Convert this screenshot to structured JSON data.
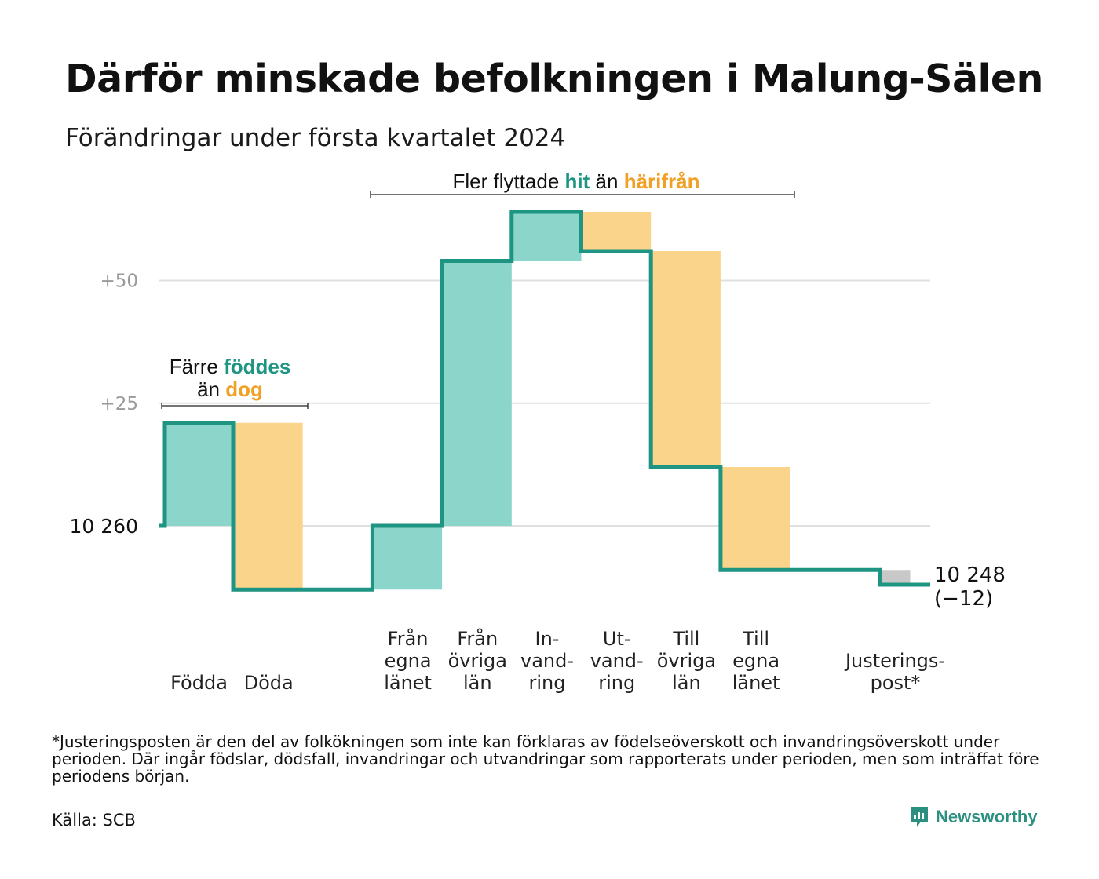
{
  "title": "Därför minskade befolkningen i Malung-Sälen",
  "subtitle": "Förändringar under första kvartalet 2024",
  "footnote": "*Justeringsposten är den del av folkökningen som inte kan förklaras av födelseöverskott och invandringsöverskott under perioden. Där ingår födslar, dödsfall, invandringar och utvandringar som rapporterats under perioden, men som inträffat före periodens början.",
  "source": "Källa: SCB",
  "brand": "Newsworthy",
  "colors": {
    "increase": "#8cd5cb",
    "decrease": "#fad48b",
    "adjustment": "#c8c8c8",
    "line": "#1e9482",
    "grid": "#e0e0e0",
    "annot_teal": "#1e9482",
    "annot_orange": "#f0a024"
  },
  "annotations": {
    "births": {
      "line1_pre": "Färre",
      "line1_hl": "föddes",
      "line2_pre": "än",
      "line2_hl": "dog"
    },
    "migration": {
      "pre": "Fler flyttade",
      "hl1": "hit",
      "mid": "än",
      "hl2": "härifrån"
    }
  },
  "chart_data": {
    "type": "waterfall",
    "title": "Därför minskade befolkningen i Malung-Sälen",
    "subtitle": "Förändringar under första kvartalet 2024",
    "start": {
      "value": 10260,
      "label": "10  260"
    },
    "end": {
      "value": 10248,
      "label_line1": "10 248",
      "label_line2": "(−12)"
    },
    "y_ticks": [
      {
        "value": 25,
        "label": "+25"
      },
      {
        "value": 50,
        "label": "+50"
      }
    ],
    "ylim": [
      -22,
      66
    ],
    "grid": true,
    "categories": [
      {
        "label_lines": [
          "Födda"
        ],
        "change": 21,
        "kind": "increase"
      },
      {
        "label_lines": [
          "Döda"
        ],
        "change": -34,
        "kind": "decrease"
      },
      {
        "label_lines": [],
        "change": 0,
        "kind": "gap"
      },
      {
        "label_lines": [
          "Från",
          "egna",
          "länet"
        ],
        "change": 13,
        "kind": "increase"
      },
      {
        "label_lines": [
          "Från",
          "övriga",
          "län"
        ],
        "change": 54,
        "kind": "increase"
      },
      {
        "label_lines": [
          "In-",
          "vand-",
          "ring"
        ],
        "change": 10,
        "kind": "increase"
      },
      {
        "label_lines": [
          "Ut-",
          "vand-",
          "ring"
        ],
        "change": -8,
        "kind": "decrease"
      },
      {
        "label_lines": [
          "Till",
          "övriga",
          "län"
        ],
        "change": -44,
        "kind": "decrease"
      },
      {
        "label_lines": [
          "Till",
          "egna",
          "länet"
        ],
        "change": -21,
        "kind": "decrease"
      },
      {
        "label_lines": [],
        "change": 0,
        "kind": "gap"
      },
      {
        "label_lines": [
          "Justerings-",
          "post*"
        ],
        "change": -3,
        "kind": "adjustment"
      }
    ]
  }
}
